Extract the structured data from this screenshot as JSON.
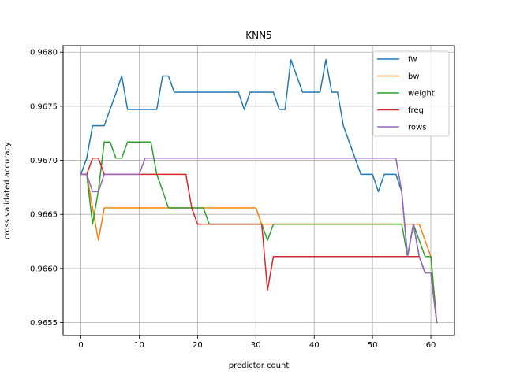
{
  "chart_data": {
    "type": "line",
    "title": "KNN5",
    "xlabel": "predictor count",
    "ylabel": "cross validated accuracy",
    "xlim": [
      -3.05,
      64.05
    ],
    "ylim": [
      0.96538,
      0.96806
    ],
    "x_ticks": [
      0,
      10,
      20,
      30,
      40,
      50,
      60
    ],
    "y_ticks": [
      0.9655,
      0.966,
      0.9665,
      0.967,
      0.9675,
      0.968
    ],
    "y_tick_labels": [
      "0.9655",
      "0.9660",
      "0.9665",
      "0.9670",
      "0.9675",
      "0.9680"
    ],
    "grid": true,
    "legend_position": "top-right",
    "series": [
      {
        "name": "fw",
        "color": "#1f77b4",
        "points": [
          [
            0,
            0.96687
          ],
          [
            1,
            0.96702
          ],
          [
            2,
            0.96732
          ],
          [
            3,
            0.96732
          ],
          [
            4,
            0.96732
          ],
          [
            5,
            0.96747
          ],
          [
            6,
            0.96762
          ],
          [
            7,
            0.96778
          ],
          [
            8,
            0.96747
          ],
          [
            9,
            0.96747
          ],
          [
            10,
            0.96747
          ],
          [
            11,
            0.96747
          ],
          [
            12,
            0.96747
          ],
          [
            13,
            0.96747
          ],
          [
            14,
            0.96778
          ],
          [
            15,
            0.96778
          ],
          [
            16,
            0.96763
          ],
          [
            17,
            0.96763
          ],
          [
            18,
            0.96763
          ],
          [
            19,
            0.96763
          ],
          [
            20,
            0.96763
          ],
          [
            21,
            0.96763
          ],
          [
            22,
            0.96763
          ],
          [
            23,
            0.96763
          ],
          [
            24,
            0.96763
          ],
          [
            25,
            0.96763
          ],
          [
            26,
            0.96763
          ],
          [
            27,
            0.96763
          ],
          [
            28,
            0.96747
          ],
          [
            29,
            0.96763
          ],
          [
            30,
            0.96763
          ],
          [
            31,
            0.96763
          ],
          [
            32,
            0.96763
          ],
          [
            33,
            0.96763
          ],
          [
            34,
            0.96747
          ],
          [
            35,
            0.96747
          ],
          [
            36,
            0.96793
          ],
          [
            37,
            0.96778
          ],
          [
            38,
            0.96763
          ],
          [
            39,
            0.96763
          ],
          [
            40,
            0.96763
          ],
          [
            41,
            0.96763
          ],
          [
            42,
            0.96793
          ],
          [
            43,
            0.96763
          ],
          [
            44,
            0.96763
          ],
          [
            45,
            0.96732
          ],
          [
            46,
            0.96717
          ],
          [
            47,
            0.96702
          ],
          [
            48,
            0.96687
          ],
          [
            49,
            0.96687
          ],
          [
            50,
            0.96687
          ],
          [
            51,
            0.96671
          ],
          [
            52,
            0.96687
          ],
          [
            53,
            0.96687
          ],
          [
            54,
            0.96687
          ],
          [
            55,
            0.96671
          ],
          [
            56,
            0.96611
          ],
          [
            57,
            0.96641
          ],
          [
            58,
            0.96611
          ],
          [
            59,
            0.96596
          ],
          [
            60,
            0.96596
          ],
          [
            61,
            0.9655
          ]
        ]
      },
      {
        "name": "bw",
        "color": "#ff7f0e",
        "points": [
          [
            0,
            0.96687
          ],
          [
            1,
            0.96687
          ],
          [
            2,
            0.96656
          ],
          [
            3,
            0.96626
          ],
          [
            4,
            0.96656
          ],
          [
            5,
            0.96656
          ],
          [
            10,
            0.96656
          ],
          [
            20,
            0.96656
          ],
          [
            30,
            0.96656
          ],
          [
            31,
            0.96641
          ],
          [
            40,
            0.96641
          ],
          [
            50,
            0.96641
          ],
          [
            55,
            0.96641
          ],
          [
            56,
            0.96641
          ],
          [
            57,
            0.96641
          ],
          [
            58,
            0.96641
          ],
          [
            59,
            0.96626
          ],
          [
            60,
            0.96611
          ],
          [
            61,
            0.9655
          ]
        ]
      },
      {
        "name": "weight",
        "color": "#2ca02c",
        "points": [
          [
            0,
            0.96687
          ],
          [
            1,
            0.96687
          ],
          [
            2,
            0.96641
          ],
          [
            3,
            0.96672
          ],
          [
            4,
            0.96717
          ],
          [
            5,
            0.96717
          ],
          [
            6,
            0.96702
          ],
          [
            7,
            0.96702
          ],
          [
            8,
            0.96717
          ],
          [
            9,
            0.96717
          ],
          [
            10,
            0.96717
          ],
          [
            11,
            0.96717
          ],
          [
            12,
            0.96717
          ],
          [
            13,
            0.96687
          ],
          [
            14,
            0.96672
          ],
          [
            15,
            0.96656
          ],
          [
            16,
            0.96656
          ],
          [
            20,
            0.96656
          ],
          [
            21,
            0.96656
          ],
          [
            22,
            0.96641
          ],
          [
            30,
            0.96641
          ],
          [
            31,
            0.96641
          ],
          [
            32,
            0.96626
          ],
          [
            33,
            0.96641
          ],
          [
            40,
            0.96641
          ],
          [
            50,
            0.96641
          ],
          [
            55,
            0.96641
          ],
          [
            56,
            0.96611
          ],
          [
            57,
            0.96641
          ],
          [
            58,
            0.96626
          ],
          [
            59,
            0.96611
          ],
          [
            60,
            0.96611
          ],
          [
            61,
            0.9655
          ]
        ]
      },
      {
        "name": "freq",
        "color": "#d62728",
        "points": [
          [
            0,
            0.96687
          ],
          [
            1,
            0.96687
          ],
          [
            2,
            0.96702
          ],
          [
            3,
            0.96702
          ],
          [
            4,
            0.96687
          ],
          [
            5,
            0.96687
          ],
          [
            10,
            0.96687
          ],
          [
            17,
            0.96687
          ],
          [
            18,
            0.96687
          ],
          [
            19,
            0.96656
          ],
          [
            20,
            0.96641
          ],
          [
            25,
            0.96641
          ],
          [
            30,
            0.96641
          ],
          [
            31,
            0.96641
          ],
          [
            32,
            0.9658
          ],
          [
            33,
            0.96611
          ],
          [
            40,
            0.96611
          ],
          [
            50,
            0.96611
          ],
          [
            55,
            0.96611
          ],
          [
            56,
            0.96611
          ],
          [
            57,
            0.96611
          ],
          [
            58,
            0.96611
          ],
          [
            59,
            0.96596
          ],
          [
            60,
            0.96596
          ],
          [
            61,
            0.9655
          ]
        ]
      },
      {
        "name": "rows",
        "color": "#9467bd",
        "points": [
          [
            0,
            0.96687
          ],
          [
            1,
            0.96687
          ],
          [
            2,
            0.96671
          ],
          [
            3,
            0.96671
          ],
          [
            4,
            0.96687
          ],
          [
            5,
            0.96687
          ],
          [
            10,
            0.96687
          ],
          [
            11,
            0.96702
          ],
          [
            20,
            0.96702
          ],
          [
            30,
            0.96702
          ],
          [
            40,
            0.96702
          ],
          [
            50,
            0.96702
          ],
          [
            54,
            0.96702
          ],
          [
            55,
            0.96671
          ],
          [
            56,
            0.96611
          ],
          [
            57,
            0.96641
          ],
          [
            58,
            0.96611
          ],
          [
            59,
            0.96596
          ],
          [
            60,
            0.96596
          ],
          [
            61,
            0.9655
          ]
        ]
      }
    ]
  }
}
